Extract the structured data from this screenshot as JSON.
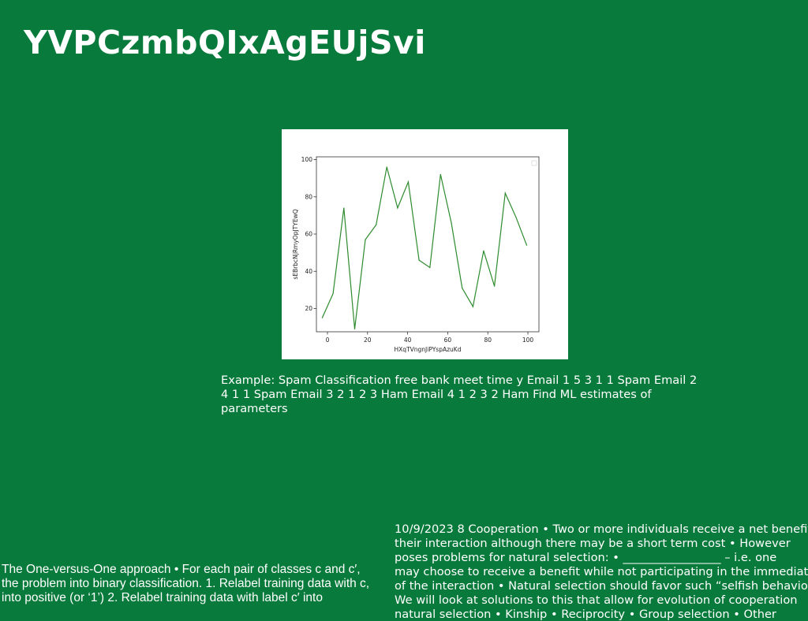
{
  "slide": {
    "title": "YVPCzmbQIxAgEUjSvi",
    "caption": "Example: Spam Classification free bank meet time y Email 1 5 3 1 1 Spam Email 2 4 1 1 Spam Email 3 2 1 2 3 Ham Email 4 1 2 3 2 Ham Find ML estimates of parameters",
    "left_text": "The One-versus-One approach • For each pair of classes c and c′, the problem into binary classification. 1. Relabel training data with c, into positive (or ‘1’) 2. Relabel training data with label c′ into",
    "right_text_lines": [
      "10/9/2023 8 Cooperation • Two or more individuals receive a net benefit",
      "their interaction although there may be a short term cost • However",
      "poses problems for natural selection: • _________________ – i.e. one",
      "may choose to receive a benefit while not participating in the immediate",
      "of the interaction • Natural selection should favor such “selfish behavior”",
      "We will look at solutions to this that allow for evolution of cooperation",
      "natural selection • Kinship • Reciprocity • Group selection • Other"
    ]
  },
  "colors": {
    "background": "#087a3b",
    "line": "#2e8b2e"
  },
  "chart_data": {
    "type": "line",
    "xlabel": "HXqTVngnJiPYspAzuKd",
    "ylabel": "sEBrbcNjRmyOpJTYEwQ",
    "xlim": [
      -5.5,
      105.5
    ],
    "ylim": [
      7.5,
      101.5
    ],
    "xticks": [
      0,
      20,
      40,
      60,
      80,
      100
    ],
    "yticks": [
      20,
      40,
      60,
      80,
      100
    ],
    "grid": false,
    "legend": "top-right, empty",
    "series": [
      {
        "x": [
          -2.6,
          2.8,
          8.2,
          13.6,
          18.9,
          24.3,
          29.6,
          35.0,
          40.3,
          45.7,
          51.1,
          56.4,
          61.8,
          67.2,
          72.6,
          77.9,
          83.3,
          88.7,
          94.1,
          99.4
        ],
        "y": [
          15,
          28,
          74,
          9,
          57,
          65,
          96,
          74,
          88,
          46,
          42,
          92,
          66,
          31,
          21,
          51,
          32,
          82,
          69,
          54
        ]
      }
    ]
  }
}
